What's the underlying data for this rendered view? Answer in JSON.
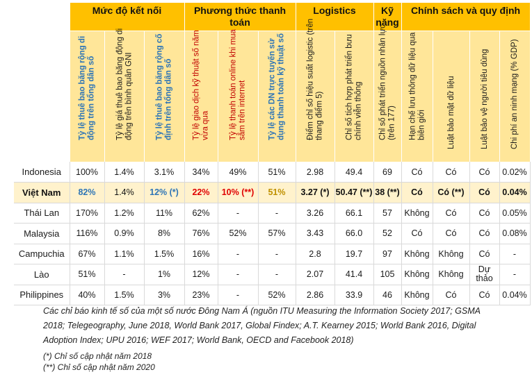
{
  "groups": [
    {
      "label": "Mức độ kết nối"
    },
    {
      "label": "Phương thức thanh toán"
    },
    {
      "label": "Logistics"
    },
    {
      "label": "Kỹ năng"
    },
    {
      "label": "Chính sách và quy định"
    }
  ],
  "subheaders": [
    "Tỷ lệ thuê bao băng rộng di động trên tổng dân số",
    "Tỷ lệ giá thuê bao băng động di động trên bình quân GNI",
    "Tỷ lệ thuê bao băng rộng cố định trên tổng dân số",
    "Tỷ lệ giao dịch kỹ thuật số năm vừa qua",
    "Tỷ lệ thanh toán online khi mua sắm trên internet",
    "Tỷ lệ các DN trực tuyến sử dụng thanh toán kỹ thuật số",
    "Điểm chỉ số hiệu suất logistic (trên thang điểm 5)",
    "Chỉ số tích hợp phát triển bưu chính viễn thông",
    "Chỉ số phát triển nguồn nhân lực (trên 177)",
    "Hạn chế lưu thông dữ liệu qua biên giới",
    "Luật bảo mật dữ liệu",
    "Luật bảo vệ người tiêu dùng",
    "Chi phí an ninh mạng (% GDP)"
  ],
  "rows": [
    {
      "country": "Indonesia",
      "cells": [
        "100%",
        "1.4%",
        "3.1%",
        "34%",
        "49%",
        "51%",
        "2.98",
        "49.4",
        "69",
        "Có",
        "Có",
        "Có",
        "0.02%"
      ]
    },
    {
      "country": "Việt Nam",
      "cells": [
        "82%",
        "1.4%",
        "12% (*)",
        "22%",
        "10% (**)",
        "51%",
        "3.27 (*)",
        "50.47 (**)",
        "38 (**)",
        "Có",
        "Có (**)",
        "Có",
        "0.04%"
      ]
    },
    {
      "country": "Thái Lan",
      "cells": [
        "170%",
        "1.2%",
        "11%",
        "62%",
        "-",
        "-",
        "3.26",
        "66.1",
        "57",
        "Không",
        "Có",
        "Có",
        "0.05%"
      ]
    },
    {
      "country": "Malaysia",
      "cells": [
        "116%",
        "0.9%",
        "8%",
        "76%",
        "52%",
        "57%",
        "3.43",
        "66.0",
        "52",
        "Có",
        "Có",
        "Có",
        "0.08%"
      ]
    },
    {
      "country": "Campuchia",
      "cells": [
        "67%",
        "1.1%",
        "1.5%",
        "16%",
        "-",
        "-",
        "2.8",
        "19.7",
        "97",
        "Không",
        "Không",
        "Có",
        "-"
      ]
    },
    {
      "country": "Lào",
      "cells": [
        "51%",
        "-",
        "1%",
        "12%",
        "-",
        "-",
        "2.07",
        "41.4",
        "105",
        "Không",
        "Không",
        "Dự thảo",
        "-"
      ]
    },
    {
      "country": "Philippines",
      "cells": [
        "40%",
        "1.5%",
        "3%",
        "23%",
        "-",
        "52%",
        "2.86",
        "33.9",
        "46",
        "Không",
        "Có",
        "Có",
        "0.04%"
      ]
    }
  ],
  "caption": "Các chỉ báo kinh tế số của một số nước Đông Nam Á (nguồn ITU Measuring the Information Society 2017; GSMA 2018; Telegeography, June 2018, World Bank 2017, Global Findex; A.T. Kearney 2015; World Bank 2016, Digital Adoption Index; UPU 2016; WEF 2017; World Bank, OECD and Facebook 2018)",
  "notes": [
    "(*) Chỉ số cập nhật năm 2018",
    "(**) Chỉ số cập nhật năm 2020"
  ]
}
